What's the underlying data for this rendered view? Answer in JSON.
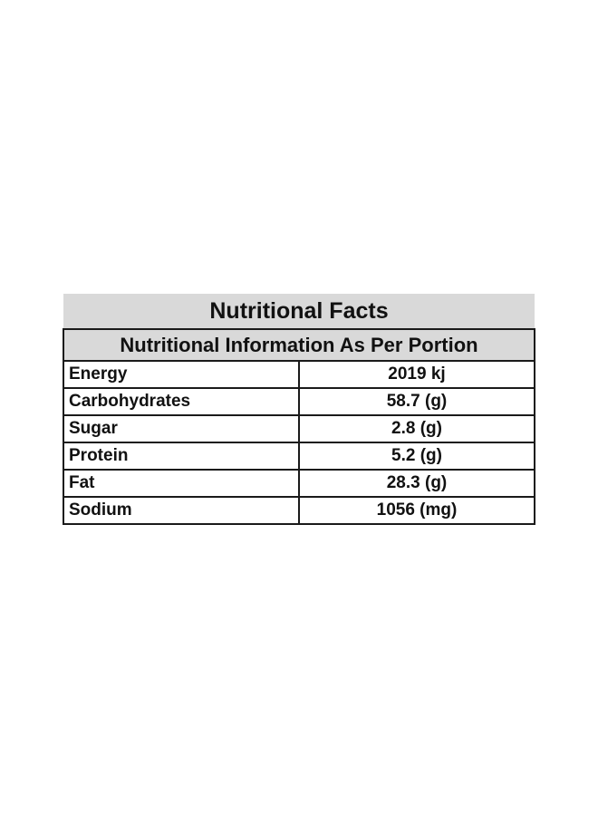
{
  "title": "Nutritional Facts",
  "subtitle": "Nutritional Information As Per Portion",
  "rows": [
    {
      "name": "Energy",
      "value": "2019 kj"
    },
    {
      "name": "Carbohydrates",
      "value": "58.7 (g)"
    },
    {
      "name": "Sugar",
      "value": "2.8 (g)"
    },
    {
      "name": "Protein",
      "value": "5.2 (g)"
    },
    {
      "name": "Fat",
      "value": "28.3 (g)"
    },
    {
      "name": "Sodium",
      "value": "1056 (mg)"
    }
  ]
}
